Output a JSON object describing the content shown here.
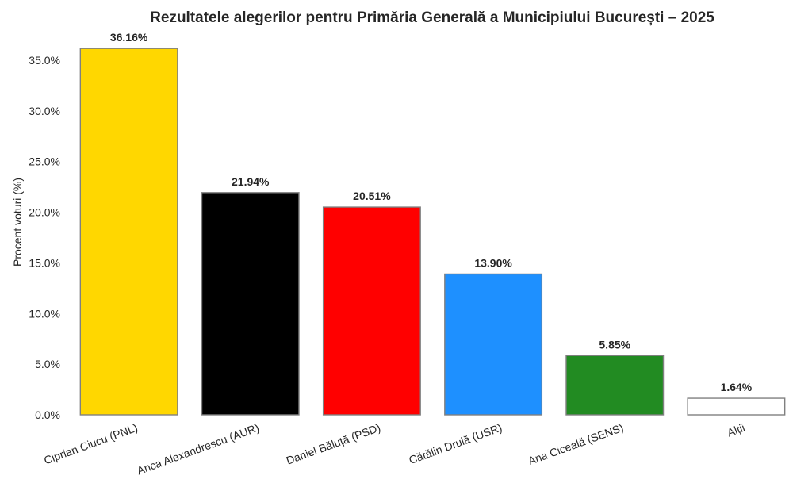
{
  "chart_data": {
    "type": "bar",
    "title": "Rezultatele alegerilor pentru Primăria Generală a Municipiului București – 2025",
    "xlabel": "",
    "ylabel": "Procent voturi (%)",
    "ylim": [
      0,
      38
    ],
    "yticks": [
      0,
      5,
      10,
      15,
      20,
      25,
      30,
      35
    ],
    "ytick_labels": [
      "0.0%",
      "5.0%",
      "10.0%",
      "15.0%",
      "20.0%",
      "25.0%",
      "30.0%",
      "35.0%"
    ],
    "grid": false,
    "categories": [
      "Ciprian Ciucu (PNL)",
      "Anca Alexandrescu (AUR)",
      "Daniel Băluță (PSD)",
      "Cătălin Drulă (USR)",
      "Ana Ciceală (SENS)",
      "Alții"
    ],
    "values": [
      36.16,
      21.94,
      20.51,
      13.9,
      5.85,
      1.64
    ],
    "value_labels": [
      "36.16%",
      "21.94%",
      "20.51%",
      "13.90%",
      "5.85%",
      "1.64%"
    ],
    "colors": [
      "#FFD700",
      "#000000",
      "#FF0000",
      "#1E90FF",
      "#228B22",
      "#FFFFFF"
    ],
    "edge_color": "#808080"
  }
}
